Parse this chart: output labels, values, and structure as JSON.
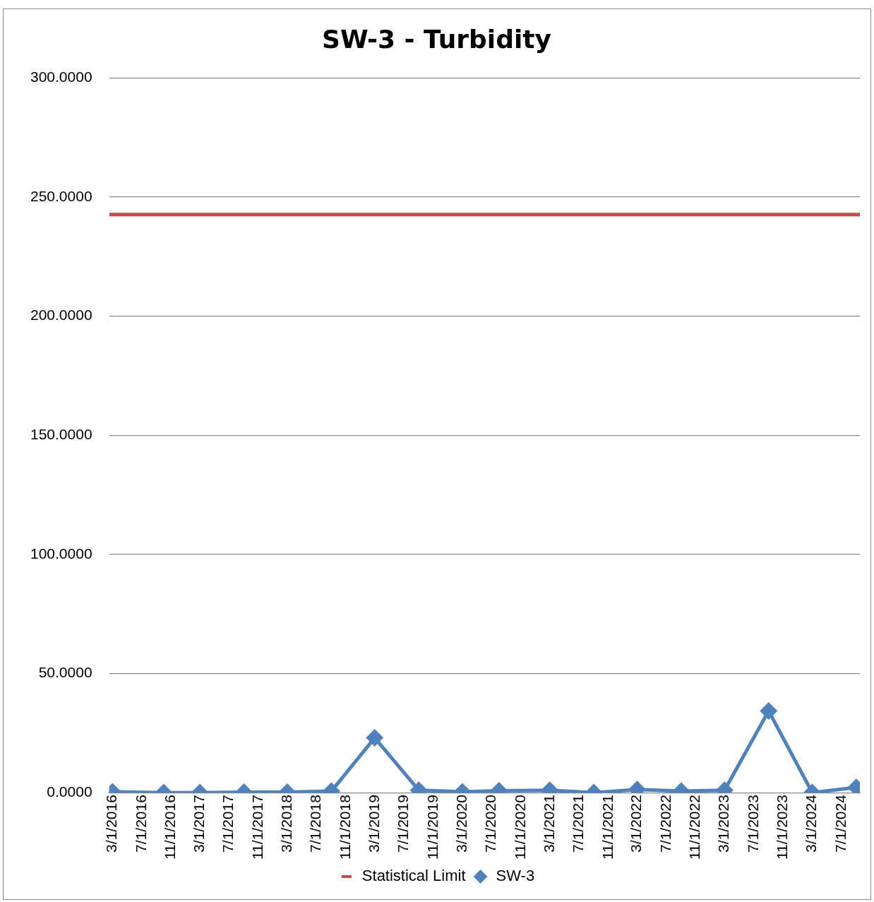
{
  "chart_data": {
    "type": "line",
    "title": "SW-3 - Turbidity",
    "xlim": [
      "2016-02-16",
      "2024-09-16"
    ],
    "xticks": [
      {
        "value": "2016-03-01",
        "label": "3/1/2016"
      },
      {
        "value": "2016-07-01",
        "label": "7/1/2016"
      },
      {
        "value": "2016-11-01",
        "label": "11/1/2016"
      },
      {
        "value": "2017-03-01",
        "label": "3/1/2017"
      },
      {
        "value": "2017-07-01",
        "label": "7/1/2017"
      },
      {
        "value": "2017-11-01",
        "label": "11/1/2017"
      },
      {
        "value": "2018-03-01",
        "label": "3/1/2018"
      },
      {
        "value": "2018-07-01",
        "label": "7/1/2018"
      },
      {
        "value": "2018-11-01",
        "label": "11/1/2018"
      },
      {
        "value": "2019-03-01",
        "label": "3/1/2019"
      },
      {
        "value": "2019-07-01",
        "label": "7/1/2019"
      },
      {
        "value": "2019-11-01",
        "label": "11/1/2019"
      },
      {
        "value": "2020-03-01",
        "label": "3/1/2020"
      },
      {
        "value": "2020-07-01",
        "label": "7/1/2020"
      },
      {
        "value": "2020-11-01",
        "label": "11/1/2020"
      },
      {
        "value": "2021-03-01",
        "label": "3/1/2021"
      },
      {
        "value": "2021-07-01",
        "label": "7/1/2021"
      },
      {
        "value": "2021-11-01",
        "label": "11/1/2021"
      },
      {
        "value": "2022-03-01",
        "label": "3/1/2022"
      },
      {
        "value": "2022-07-01",
        "label": "7/1/2022"
      },
      {
        "value": "2022-11-01",
        "label": "11/1/2022"
      },
      {
        "value": "2023-03-01",
        "label": "3/1/2023"
      },
      {
        "value": "2023-07-01",
        "label": "7/1/2023"
      },
      {
        "value": "2023-11-01",
        "label": "11/1/2023"
      },
      {
        "value": "2024-03-01",
        "label": "3/1/2024"
      },
      {
        "value": "2024-07-01",
        "label": "7/1/2024"
      }
    ],
    "ylim": [
      0,
      300
    ],
    "yticks": [
      {
        "value": 0,
        "label": "0.0000"
      },
      {
        "value": 50,
        "label": "50.0000"
      },
      {
        "value": 100,
        "label": "100.0000"
      },
      {
        "value": 150,
        "label": "150.0000"
      },
      {
        "value": 200,
        "label": "200.0000"
      },
      {
        "value": 250,
        "label": "250.0000"
      },
      {
        "value": 300,
        "label": "300.0000"
      }
    ],
    "grid": "y",
    "legend": "bottom",
    "series": [
      {
        "name": "Statistical Limit",
        "color": "#c0504d",
        "marker": "none",
        "x": [
          "2016-02-16",
          "2024-09-16"
        ],
        "values": [
          242.6,
          242.6
        ]
      },
      {
        "name": "SW-3",
        "color": "#4f81bd",
        "marker": "diamond",
        "x": [
          "2016-03-01",
          "2016-10-01",
          "2017-03-01",
          "2017-09-01",
          "2018-03-01",
          "2018-09-01",
          "2019-03-01",
          "2019-09-01",
          "2020-03-01",
          "2020-08-01",
          "2021-03-01",
          "2021-09-01",
          "2022-03-01",
          "2022-09-01",
          "2023-03-01",
          "2023-09-01",
          "2024-03-01",
          "2024-09-01"
        ],
        "values": [
          0.3,
          0,
          0,
          0.2,
          0.2,
          0.6,
          23,
          1,
          0.3,
          0.8,
          1,
          0,
          1.3,
          0.6,
          1,
          34.3,
          0,
          2.2
        ]
      }
    ]
  }
}
